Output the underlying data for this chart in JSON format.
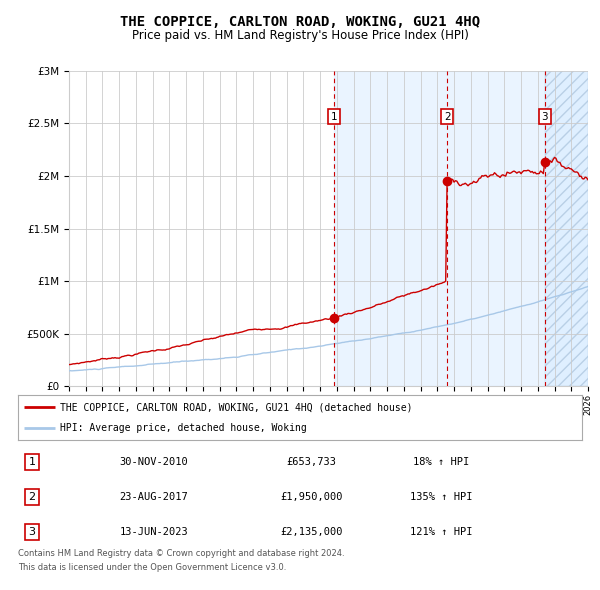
{
  "title": "THE COPPICE, CARLTON ROAD, WOKING, GU21 4HQ",
  "subtitle": "Price paid vs. HM Land Registry's House Price Index (HPI)",
  "title_fontsize": 10,
  "subtitle_fontsize": 8.5,
  "bg_color": "#ffffff",
  "chart_bg": "#ffffff",
  "grid_color": "#cccccc",
  "sale_info": [
    {
      "label": "1",
      "date": "30-NOV-2010",
      "price": "£653,733",
      "hpi": "18% ↑ HPI",
      "year": 2010,
      "month": 11,
      "price_val": 653733
    },
    {
      "label": "2",
      "date": "23-AUG-2017",
      "price": "£1,950,000",
      "hpi": "135% ↑ HPI",
      "year": 2017,
      "month": 8,
      "price_val": 1950000
    },
    {
      "label": "3",
      "date": "13-JUN-2023",
      "price": "£2,135,000",
      "hpi": "121% ↑ HPI",
      "year": 2023,
      "month": 6,
      "price_val": 2135000
    }
  ],
  "legend_line1": "THE COPPICE, CARLTON ROAD, WOKING, GU21 4HQ (detached house)",
  "legend_line2": "HPI: Average price, detached house, Woking",
  "footer_line1": "Contains HM Land Registry data © Crown copyright and database right 2024.",
  "footer_line2": "This data is licensed under the Open Government Licence v3.0.",
  "ylim": [
    0,
    3000000
  ],
  "yticks": [
    0,
    500000,
    1000000,
    1500000,
    2000000,
    2500000,
    3000000
  ],
  "ytick_labels": [
    "£0",
    "£500K",
    "£1M",
    "£1.5M",
    "£2M",
    "£2.5M",
    "£3M"
  ],
  "xmin": 1995,
  "xmax": 2026,
  "hpi_color": "#a8c8e8",
  "property_color": "#cc0000",
  "shade_color": "#ddeeff",
  "label_box_color": "#cc0000"
}
